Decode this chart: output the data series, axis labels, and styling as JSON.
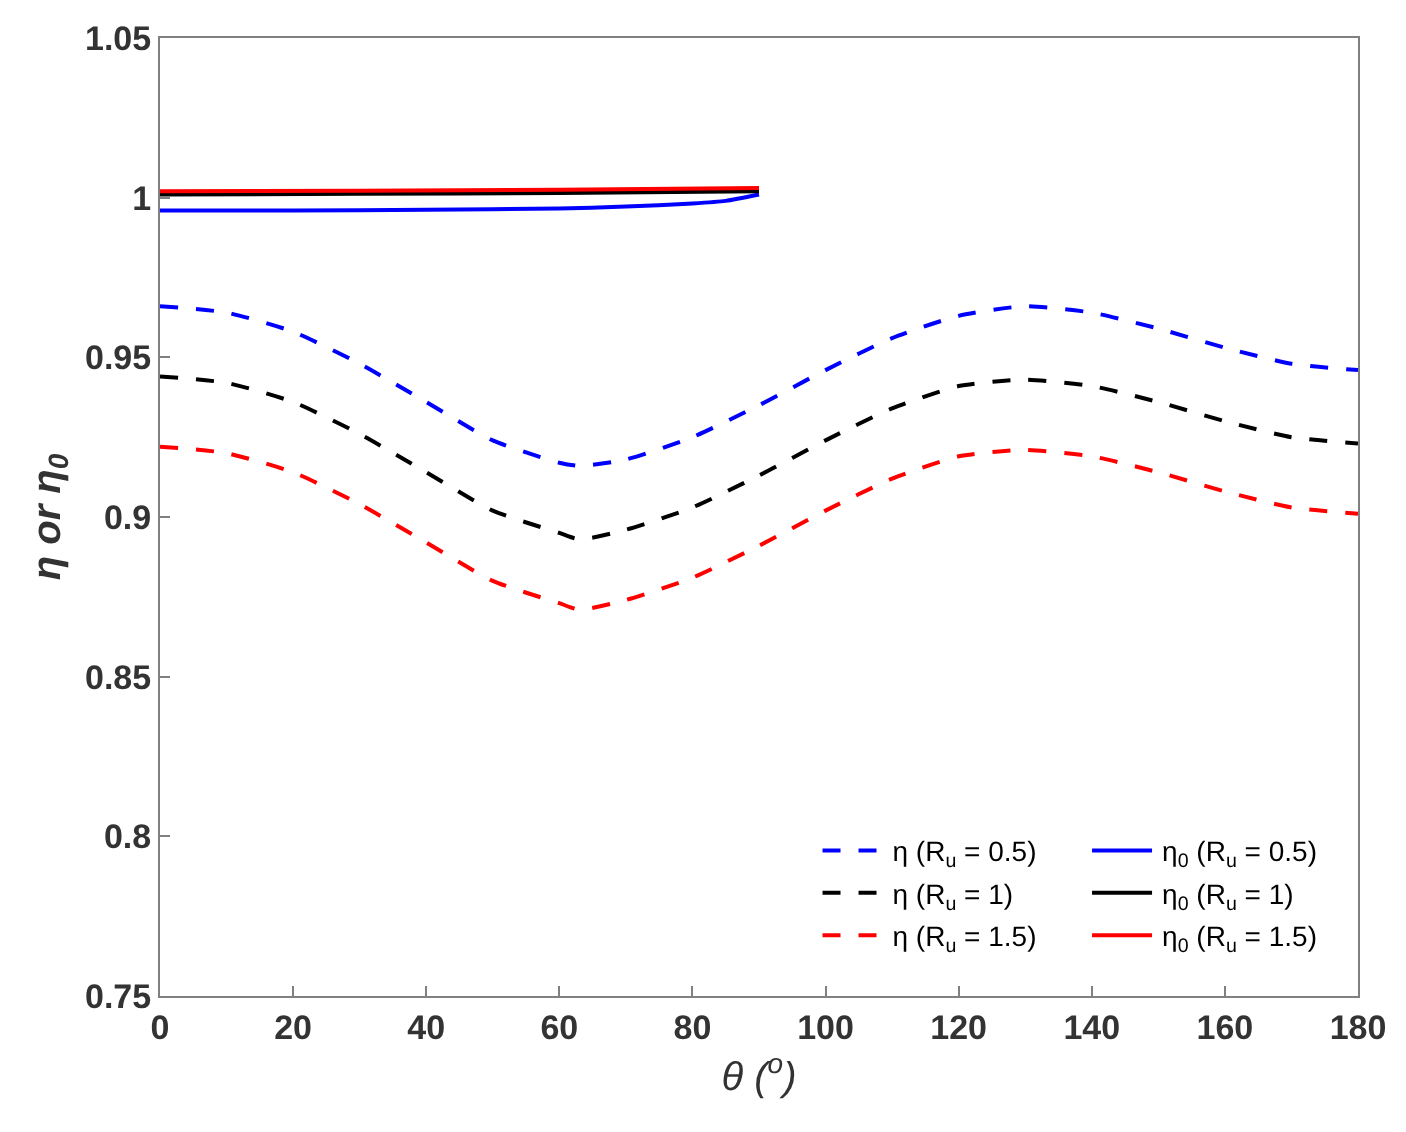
{
  "chart_data": {
    "type": "line",
    "xlabel": "θ ($^{o}$)",
    "ylabel": "η or η$_{0}$",
    "xlim": [
      0,
      180
    ],
    "ylim": [
      0.75,
      1.05
    ],
    "xticks": [
      0,
      20,
      40,
      60,
      80,
      100,
      120,
      140,
      160,
      180
    ],
    "yticks": [
      0.75,
      0.8,
      0.85,
      0.9,
      0.95,
      1,
      1.05
    ],
    "legend": "bottom right",
    "series": [
      {
        "name": "η (R$_{u}$ = 0.5)",
        "color": "#0000ff",
        "line_style": "dashed",
        "x": [
          0,
          10,
          20,
          30,
          40,
          50,
          60,
          63,
          70,
          80,
          90,
          100,
          110,
          120,
          130,
          140,
          150,
          160,
          170,
          180
        ],
        "values": [
          0.966,
          0.964,
          0.958,
          0.948,
          0.936,
          0.924,
          0.917,
          0.916,
          0.918,
          0.925,
          0.935,
          0.946,
          0.956,
          0.963,
          0.966,
          0.964,
          0.959,
          0.953,
          0.948,
          0.946
        ]
      },
      {
        "name": "η (R$_{u}$ = 1)",
        "color": "#000000",
        "line_style": "dashed",
        "x": [
          0,
          10,
          20,
          30,
          40,
          50,
          60,
          63,
          70,
          80,
          90,
          100,
          110,
          120,
          130,
          140,
          150,
          160,
          170,
          180
        ],
        "values": [
          0.944,
          0.942,
          0.936,
          0.926,
          0.914,
          0.902,
          0.895,
          0.893,
          0.896,
          0.903,
          0.913,
          0.924,
          0.934,
          0.941,
          0.943,
          0.941,
          0.936,
          0.93,
          0.925,
          0.923
        ]
      },
      {
        "name": "η (R$_{u}$ = 1.5)",
        "color": "#ff0000",
        "line_style": "dashed",
        "x": [
          0,
          10,
          20,
          30,
          40,
          50,
          60,
          63,
          70,
          80,
          90,
          100,
          110,
          120,
          130,
          140,
          150,
          160,
          170,
          180
        ],
        "values": [
          0.922,
          0.92,
          0.914,
          0.904,
          0.892,
          0.88,
          0.873,
          0.871,
          0.874,
          0.881,
          0.891,
          0.902,
          0.912,
          0.919,
          0.921,
          0.919,
          0.914,
          0.908,
          0.903,
          0.901
        ]
      },
      {
        "name": "η$_{0}$ (R$_{u}$ = 0.5)",
        "color": "#0000ff",
        "line_style": "solid",
        "x": [
          0,
          20,
          40,
          60,
          70,
          80,
          85,
          90
        ],
        "values": [
          0.996,
          0.996,
          0.9962,
          0.9966,
          0.9972,
          0.9982,
          0.999,
          1.001
        ]
      },
      {
        "name": "η$_{0}$ (R$_{u}$ = 1)",
        "color": "#000000",
        "line_style": "solid",
        "x": [
          0,
          30,
          60,
          90
        ],
        "values": [
          1.001,
          1.0012,
          1.0015,
          1.002
        ]
      },
      {
        "name": "η$_{0}$ (R$_{u}$ = 1.5)",
        "color": "#ff0000",
        "line_style": "solid",
        "x": [
          0,
          30,
          60,
          90
        ],
        "values": [
          1.002,
          1.0022,
          1.0025,
          1.003
        ]
      }
    ]
  }
}
